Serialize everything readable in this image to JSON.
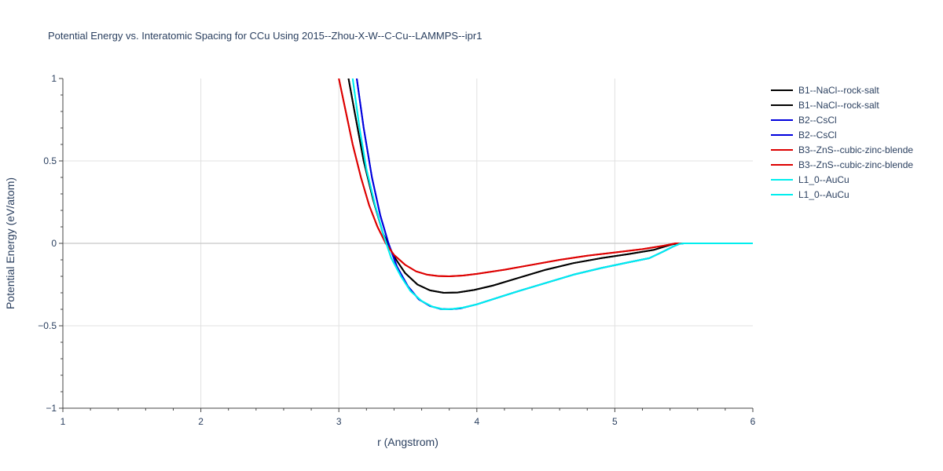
{
  "chart_data": {
    "type": "line",
    "title": "Potential Energy vs. Interatomic Spacing for CCu Using 2015--Zhou-X-W--C-Cu--LAMMPS--ipr1",
    "xlabel": "r (Angstrom)",
    "ylabel": "Potential Energy (eV/atom)",
    "xlim": [
      1,
      6
    ],
    "ylim": [
      -1,
      1
    ],
    "xticks": [
      "1",
      "2",
      "3",
      "4",
      "5",
      "6"
    ],
    "yticks": [
      "−1",
      "−0.5",
      "0",
      "0.5",
      "1"
    ],
    "grid": true,
    "legend_position": "right",
    "series": [
      {
        "name": "B1--NaCl--rock-salt",
        "color": "#000000",
        "x": [
          3.07,
          3.12,
          3.18,
          3.25,
          3.32,
          3.4,
          3.48,
          3.57,
          3.66,
          3.76,
          3.86,
          3.98,
          4.12,
          4.3,
          4.5,
          4.7,
          4.9,
          5.1,
          5.28,
          5.36,
          5.42,
          5.46,
          5.5,
          6.0
        ],
        "y": [
          1.0,
          0.77,
          0.5,
          0.26,
          0.06,
          -0.08,
          -0.18,
          -0.25,
          -0.285,
          -0.3,
          -0.298,
          -0.283,
          -0.255,
          -0.21,
          -0.16,
          -0.12,
          -0.09,
          -0.065,
          -0.04,
          -0.02,
          -0.005,
          0.0,
          0.0,
          0.0
        ]
      },
      {
        "name": "B1--NaCl--rock-salt",
        "color": "#000000",
        "x": [
          3.07,
          3.12,
          3.18,
          3.25,
          3.32,
          3.4,
          3.48,
          3.57,
          3.66,
          3.76,
          3.86,
          3.98,
          4.12,
          4.3,
          4.5,
          4.7,
          4.9,
          5.1,
          5.28,
          5.36,
          5.42,
          5.46,
          5.5,
          6.0
        ],
        "y": [
          1.0,
          0.77,
          0.5,
          0.26,
          0.06,
          -0.08,
          -0.18,
          -0.25,
          -0.285,
          -0.3,
          -0.298,
          -0.283,
          -0.255,
          -0.21,
          -0.16,
          -0.12,
          -0.09,
          -0.065,
          -0.04,
          -0.02,
          -0.005,
          0.0,
          0.0,
          0.0
        ]
      },
      {
        "name": "B2--CsCl",
        "color": "#0000dd",
        "x": [
          3.13,
          3.18,
          3.24,
          3.3,
          3.36,
          3.42,
          3.5,
          3.58,
          3.66,
          3.74,
          3.8,
          3.88,
          4.0,
          4.15,
          4.3,
          4.5,
          4.7,
          4.9,
          5.1,
          5.25,
          5.35,
          5.42,
          5.47,
          5.5,
          6.0
        ],
        "y": [
          1.0,
          0.7,
          0.4,
          0.17,
          0.0,
          -0.14,
          -0.26,
          -0.34,
          -0.38,
          -0.398,
          -0.4,
          -0.395,
          -0.37,
          -0.33,
          -0.29,
          -0.24,
          -0.19,
          -0.15,
          -0.115,
          -0.09,
          -0.05,
          -0.02,
          -0.003,
          0.0,
          0.0
        ]
      },
      {
        "name": "B2--CsCl",
        "color": "#0000dd",
        "x": [
          3.13,
          3.18,
          3.24,
          3.3,
          3.36,
          3.42,
          3.5,
          3.58,
          3.66,
          3.74,
          3.8,
          3.88,
          4.0,
          4.15,
          4.3,
          4.5,
          4.7,
          4.9,
          5.1,
          5.25,
          5.35,
          5.42,
          5.47,
          5.5,
          6.0
        ],
        "y": [
          1.0,
          0.7,
          0.4,
          0.17,
          0.0,
          -0.14,
          -0.26,
          -0.34,
          -0.38,
          -0.398,
          -0.4,
          -0.395,
          -0.37,
          -0.33,
          -0.29,
          -0.24,
          -0.19,
          -0.15,
          -0.115,
          -0.09,
          -0.05,
          -0.02,
          -0.003,
          0.0,
          0.0
        ]
      },
      {
        "name": "B3--ZnS--cubic-zinc-blende",
        "color": "#dd0000",
        "x": [
          3.0,
          3.05,
          3.1,
          3.16,
          3.22,
          3.28,
          3.34,
          3.4,
          3.48,
          3.56,
          3.64,
          3.72,
          3.8,
          3.9,
          4.0,
          4.2,
          4.4,
          4.6,
          4.8,
          5.0,
          5.2,
          5.35,
          5.44,
          5.5,
          6.0
        ],
        "y": [
          1.0,
          0.8,
          0.6,
          0.4,
          0.23,
          0.1,
          0.0,
          -0.07,
          -0.13,
          -0.17,
          -0.19,
          -0.198,
          -0.2,
          -0.195,
          -0.185,
          -0.16,
          -0.13,
          -0.1,
          -0.075,
          -0.055,
          -0.035,
          -0.015,
          0.0,
          0.0,
          0.0
        ]
      },
      {
        "name": "B3--ZnS--cubic-zinc-blende",
        "color": "#dd0000",
        "x": [
          3.0,
          3.05,
          3.1,
          3.16,
          3.22,
          3.28,
          3.34,
          3.4,
          3.48,
          3.56,
          3.64,
          3.72,
          3.8,
          3.9,
          4.0,
          4.2,
          4.4,
          4.6,
          4.8,
          5.0,
          5.2,
          5.35,
          5.44,
          5.5,
          6.0
        ],
        "y": [
          1.0,
          0.8,
          0.6,
          0.4,
          0.23,
          0.1,
          0.0,
          -0.07,
          -0.13,
          -0.17,
          -0.19,
          -0.198,
          -0.2,
          -0.195,
          -0.185,
          -0.16,
          -0.13,
          -0.1,
          -0.075,
          -0.055,
          -0.035,
          -0.015,
          0.0,
          0.0,
          0.0
        ]
      },
      {
        "name": "L1_0--AuCu",
        "color": "#00eeee",
        "x": [
          3.1,
          3.15,
          3.2,
          3.26,
          3.32,
          3.38,
          3.45,
          3.52,
          3.6,
          3.68,
          3.76,
          3.82,
          3.9,
          4.0,
          4.15,
          4.3,
          4.5,
          4.7,
          4.9,
          5.1,
          5.25,
          5.35,
          5.42,
          5.47,
          5.5,
          6.0
        ],
        "y": [
          1.0,
          0.7,
          0.45,
          0.24,
          0.06,
          -0.09,
          -0.2,
          -0.29,
          -0.35,
          -0.385,
          -0.4,
          -0.398,
          -0.39,
          -0.37,
          -0.33,
          -0.29,
          -0.24,
          -0.19,
          -0.15,
          -0.115,
          -0.09,
          -0.05,
          -0.02,
          -0.003,
          0.0,
          0.0
        ]
      },
      {
        "name": "L1_0--AuCu",
        "color": "#00eeee",
        "x": [
          3.1,
          3.15,
          3.2,
          3.26,
          3.32,
          3.38,
          3.45,
          3.52,
          3.6,
          3.68,
          3.76,
          3.82,
          3.9,
          4.0,
          4.15,
          4.3,
          4.5,
          4.7,
          4.9,
          5.1,
          5.25,
          5.35,
          5.42,
          5.47,
          5.5,
          6.0
        ],
        "y": [
          1.0,
          0.7,
          0.45,
          0.24,
          0.06,
          -0.09,
          -0.2,
          -0.29,
          -0.35,
          -0.385,
          -0.4,
          -0.398,
          -0.39,
          -0.37,
          -0.33,
          -0.29,
          -0.24,
          -0.19,
          -0.15,
          -0.115,
          -0.09,
          -0.05,
          -0.02,
          -0.003,
          0.0,
          0.0
        ]
      }
    ]
  }
}
